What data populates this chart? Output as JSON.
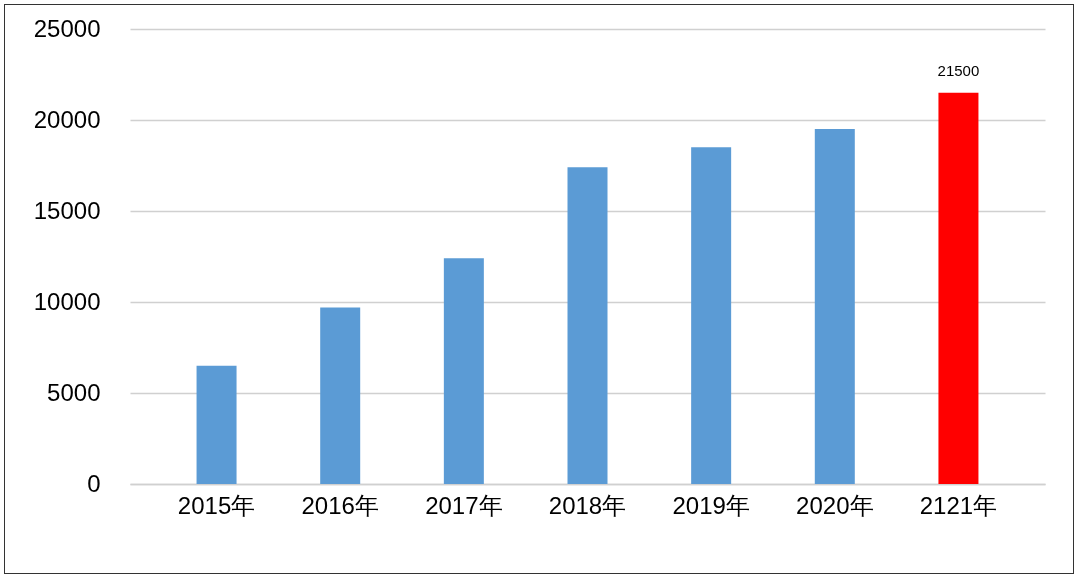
{
  "chart_data": {
    "type": "bar",
    "categories": [
      "2015年",
      "2016年",
      "2017年",
      "2018年",
      "2019年",
      "2020年",
      "2121年"
    ],
    "values": [
      6500,
      9700,
      12400,
      17400,
      18500,
      19500,
      21500
    ],
    "colors": [
      "#5b9bd5",
      "#5b9bd5",
      "#5b9bd5",
      "#5b9bd5",
      "#5b9bd5",
      "#5b9bd5",
      "#ff0000"
    ],
    "value_labels": [
      null,
      null,
      null,
      null,
      null,
      null,
      "21500"
    ],
    "ylim": [
      0,
      25000
    ],
    "yticks": [
      0,
      5000,
      10000,
      15000,
      20000,
      25000
    ],
    "grid": "y"
  }
}
